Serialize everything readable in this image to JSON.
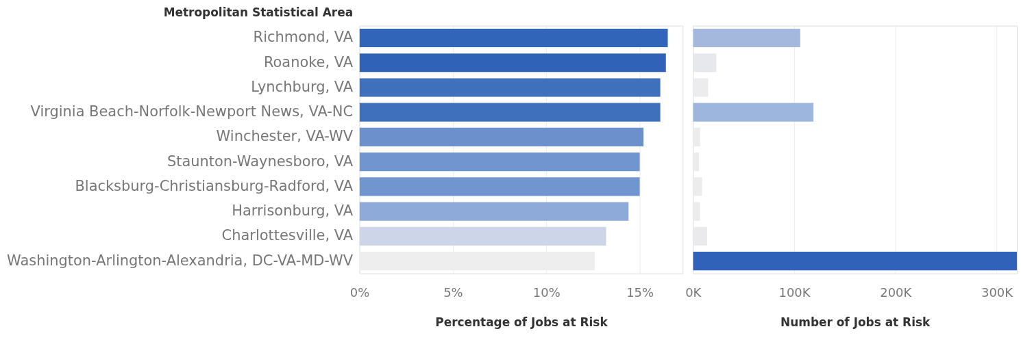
{
  "chart_data": [
    {
      "type": "bar",
      "orientation": "horizontal",
      "ylabel": "Metropolitan Statistical Area",
      "xlabel": "Percentage of Jobs at Risk",
      "categories": [
        "Richmond, VA",
        "Roanoke, VA",
        "Lynchburg, VA",
        "Virginia Beach-Norfolk-Newport News, VA-NC",
        "Winchester, VA-WV",
        "Staunton-Waynesboro, VA",
        "Blacksburg-Christiansburg-Radford, VA",
        "Harrisonburg, VA",
        "Charlottesville, VA",
        "Washington-Arlington-Alexandria, DC-VA-MD-WV"
      ],
      "values": [
        16.5,
        16.4,
        16.1,
        16.1,
        15.2,
        15.0,
        15.0,
        14.4,
        13.2,
        12.6
      ],
      "colors": [
        "#3165ba",
        "#3062b8",
        "#3f70bc",
        "#3f70bc",
        "#6b90cc",
        "#7196cf",
        "#7196cf",
        "#8eaad8",
        "#cdd6e8",
        "#eeeeee"
      ],
      "xlim": [
        0,
        17.3
      ],
      "xticks": [
        {
          "value": 0,
          "label": "0%"
        },
        {
          "value": 5,
          "label": "5%"
        },
        {
          "value": 10,
          "label": "10%"
        },
        {
          "value": 15,
          "label": "15%"
        }
      ],
      "grid": "x"
    },
    {
      "type": "bar",
      "orientation": "horizontal",
      "xlabel": "Number of Jobs at Risk",
      "tick_labels": "x",
      "categories": [
        "Richmond, VA",
        "Roanoke, VA",
        "Lynchburg, VA",
        "Virginia Beach-Norfolk-Newport News, VA-NC",
        "Winchester, VA-WV",
        "Staunton-Waynesboro, VA",
        "Blacksburg-Christiansburg-Radford, VA",
        "Harrisonburg, VA",
        "Charlottesville, VA",
        "Washington-Arlington-Alexandria, DC-VA-MD-WV"
      ],
      "values": [
        106000,
        23000,
        15000,
        119000,
        7000,
        6000,
        9000,
        7000,
        14000,
        320000
      ],
      "colors": [
        "#a3b8dc",
        "#e6e8ee",
        "#ececef",
        "#9db6dd",
        "#ececec",
        "#ececec",
        "#ececec",
        "#ececec",
        "#eaeaec",
        "#2f62b8"
      ],
      "xlim": [
        0,
        320000
      ],
      "xticks": [
        {
          "value": 0,
          "label": "0K"
        },
        {
          "value": 100000,
          "label": "100K"
        },
        {
          "value": 200000,
          "label": "200K"
        },
        {
          "value": 300000,
          "label": "300K"
        }
      ],
      "grid": "x"
    }
  ]
}
